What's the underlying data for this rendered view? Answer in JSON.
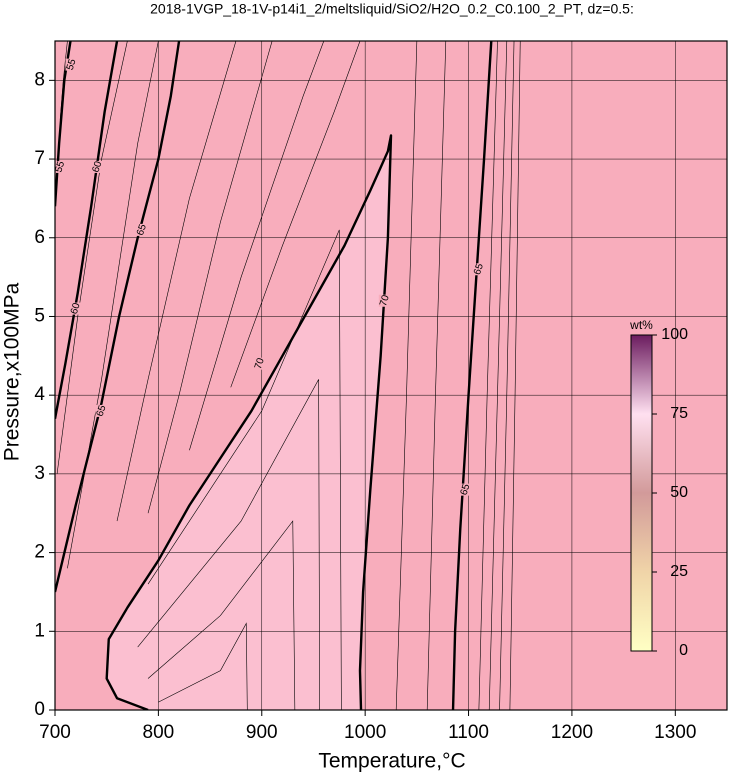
{
  "chart_data": {
    "type": "contour",
    "title": "2018-1VGP_18-1V-p14i1_2/meltsliquid/SiO2/H2O_0.2_C0.100_2_PT, dz=0.5:",
    "x_label": "Temperature,°C",
    "y_label": "Pressure,x100MPa",
    "xlim": [
      700,
      1350
    ],
    "ylim": [
      0,
      8.5
    ],
    "xticks": [
      700,
      800,
      900,
      1000,
      1100,
      1200,
      1300
    ],
    "yticks": [
      0,
      1,
      2,
      3,
      4,
      5,
      6,
      7,
      8
    ],
    "grid": true,
    "background_color": "#f8adbc",
    "contours": [
      {
        "level": 55,
        "fill": null,
        "x": [
          700,
          704,
          709,
          715
        ],
        "y": [
          6.4,
          7.2,
          8.0,
          8.5
        ],
        "labels": [
          {
            "x": 705,
            "y": 6.9
          },
          {
            "x": 716,
            "y": 8.2
          }
        ]
      },
      {
        "level": 60,
        "fill": null,
        "x": [
          700,
          710,
          722,
          735,
          748,
          760
        ],
        "y": [
          3.7,
          4.4,
          5.3,
          6.4,
          7.6,
          8.5
        ],
        "labels": [
          {
            "x": 720,
            "y": 5.1
          },
          {
            "x": 741,
            "y": 6.9
          }
        ]
      },
      {
        "level": 65,
        "fill": null,
        "x": [
          700,
          720,
          745,
          762,
          780,
          800,
          812,
          820
        ],
        "y": [
          1.5,
          2.6,
          3.9,
          5.0,
          6.0,
          7.0,
          7.8,
          8.5
        ],
        "labels": [
          {
            "x": 745,
            "y": 3.8
          },
          {
            "x": 784,
            "y": 6.1
          }
        ]
      },
      {
        "level": 70,
        "fill": "#fbbfd0",
        "x": [
          790,
          760,
          750,
          752,
          770,
          800,
          830,
          860,
          890,
          920,
          950,
          980,
          1005,
          1022,
          1025,
          1022,
          1015,
          1005,
          998,
          995,
          996
        ],
        "y": [
          0,
          0.15,
          0.4,
          0.9,
          1.3,
          1.9,
          2.6,
          3.2,
          3.8,
          4.5,
          5.2,
          5.9,
          6.6,
          7.1,
          7.3,
          6.0,
          4.5,
          2.8,
          1.5,
          0.5,
          0
        ],
        "labels": [
          {
            "x": 898,
            "y": 4.4
          },
          {
            "x": 1019,
            "y": 5.2
          }
        ]
      },
      {
        "level": 65,
        "fill": null,
        "x": [
          1085,
          1087,
          1092,
          1100,
          1108,
          1115,
          1122
        ],
        "y": [
          0,
          1.0,
          2.3,
          4.0,
          5.6,
          7.0,
          8.5
        ],
        "labels": [
          {
            "x": 1097,
            "y": 2.8
          },
          {
            "x": 1110,
            "y": 5.6
          }
        ]
      }
    ],
    "minor_contours": [
      {
        "x": [
          705,
          708,
          712
        ],
        "y": [
          7.5,
          8.0,
          8.5
        ]
      },
      {
        "x": [
          702,
          722,
          745,
          770
        ],
        "y": [
          3.0,
          5.0,
          7.0,
          8.5
        ]
      },
      {
        "x": [
          712,
          745,
          780,
          800
        ],
        "y": [
          1.8,
          4.2,
          7.2,
          8.5
        ]
      },
      {
        "x": [
          760,
          790,
          830,
          875
        ],
        "y": [
          2.4,
          4.2,
          6.5,
          8.5
        ]
      },
      {
        "x": [
          790,
          820,
          860,
          910
        ],
        "y": [
          2.5,
          4.0,
          6.2,
          8.5
        ]
      },
      {
        "x": [
          830,
          880,
          940,
          960
        ],
        "y": [
          3.3,
          5.5,
          7.8,
          8.5
        ]
      },
      {
        "x": [
          870,
          920,
          970,
          995
        ],
        "y": [
          4.1,
          5.9,
          7.6,
          8.5
        ]
      },
      {
        "x": [
          800,
          860,
          885,
          886
        ],
        "y": [
          0.1,
          0.5,
          1.1,
          0
        ]
      },
      {
        "x": [
          790,
          860,
          930,
          932
        ],
        "y": [
          0.4,
          1.2,
          2.4,
          0
        ]
      },
      {
        "x": [
          780,
          880,
          955,
          956
        ],
        "y": [
          0.8,
          2.4,
          4.2,
          0
        ]
      },
      {
        "x": [
          790,
          900,
          975,
          977
        ],
        "y": [
          1.6,
          3.8,
          6.1,
          0
        ]
      },
      {
        "x": [
          1030,
          1040,
          1050
        ],
        "y": [
          0,
          4.0,
          8.5
        ]
      },
      {
        "x": [
          1060,
          1068,
          1078
        ],
        "y": [
          0,
          4.0,
          8.5
        ]
      },
      {
        "x": [
          1110,
          1118,
          1128
        ],
        "y": [
          0,
          4.0,
          8.5
        ]
      },
      {
        "x": [
          1120,
          1128,
          1137
        ],
        "y": [
          0,
          4.0,
          8.5
        ]
      },
      {
        "x": [
          1130,
          1137,
          1144
        ],
        "y": [
          0,
          4.0,
          8.5
        ]
      },
      {
        "x": [
          1140,
          1145,
          1150
        ],
        "y": [
          0,
          4.0,
          8.5
        ]
      }
    ],
    "colorbar": {
      "label": "wt%",
      "lim": [
        0,
        100
      ],
      "ticks": [
        0,
        25,
        50,
        75,
        100
      ],
      "colors": [
        "#ffffc4",
        "#f0d4a8",
        "#d29a9a",
        "#ffe0f0",
        "#6b1c5f"
      ]
    }
  }
}
